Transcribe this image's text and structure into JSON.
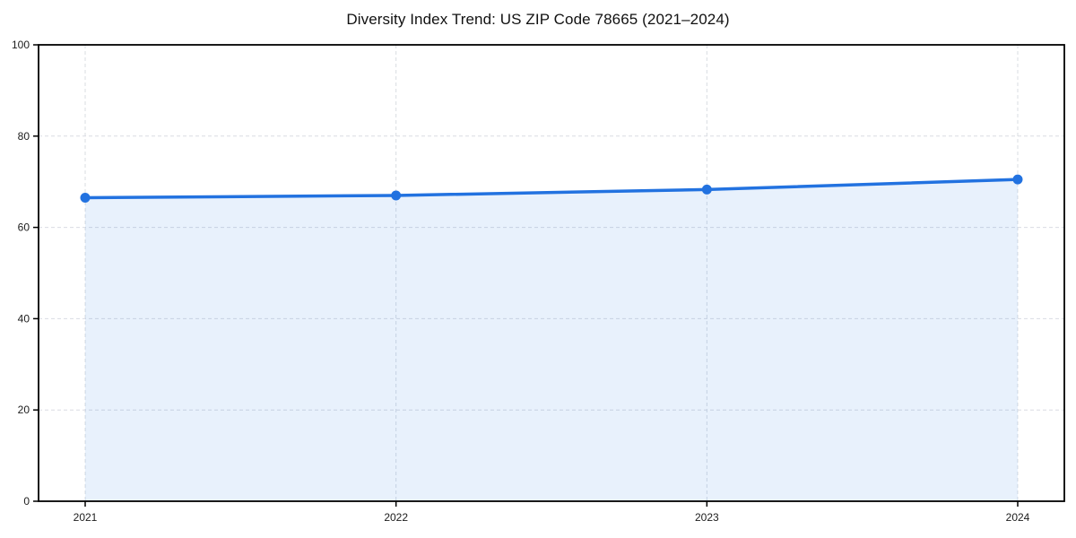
{
  "chart_data": {
    "type": "line",
    "title": "Diversity Index Trend: US ZIP Code 78665 (2021–2024)",
    "categories": [
      "2021",
      "2022",
      "2023",
      "2024"
    ],
    "x": [
      2021,
      2022,
      2023,
      2024
    ],
    "series": [
      {
        "name": "Diversity Index",
        "values": [
          66.5,
          67.0,
          68.3,
          70.5
        ]
      }
    ],
    "xlabel": "",
    "ylabel": "",
    "ylim": [
      0,
      100
    ],
    "yticks": [
      0,
      20,
      40,
      60,
      80,
      100
    ],
    "grid": true,
    "legend": "none",
    "area": true,
    "marker": "circle",
    "colors": {
      "line": "#2272e0",
      "marker": "#2272e0",
      "fill": "#2272e0",
      "fill_opacity": 0.1,
      "gridline": "#d9dce2",
      "frame": "#000000",
      "tick_text": "#1c1c1c",
      "title_text": "#111111",
      "background": "#ffffff"
    }
  }
}
